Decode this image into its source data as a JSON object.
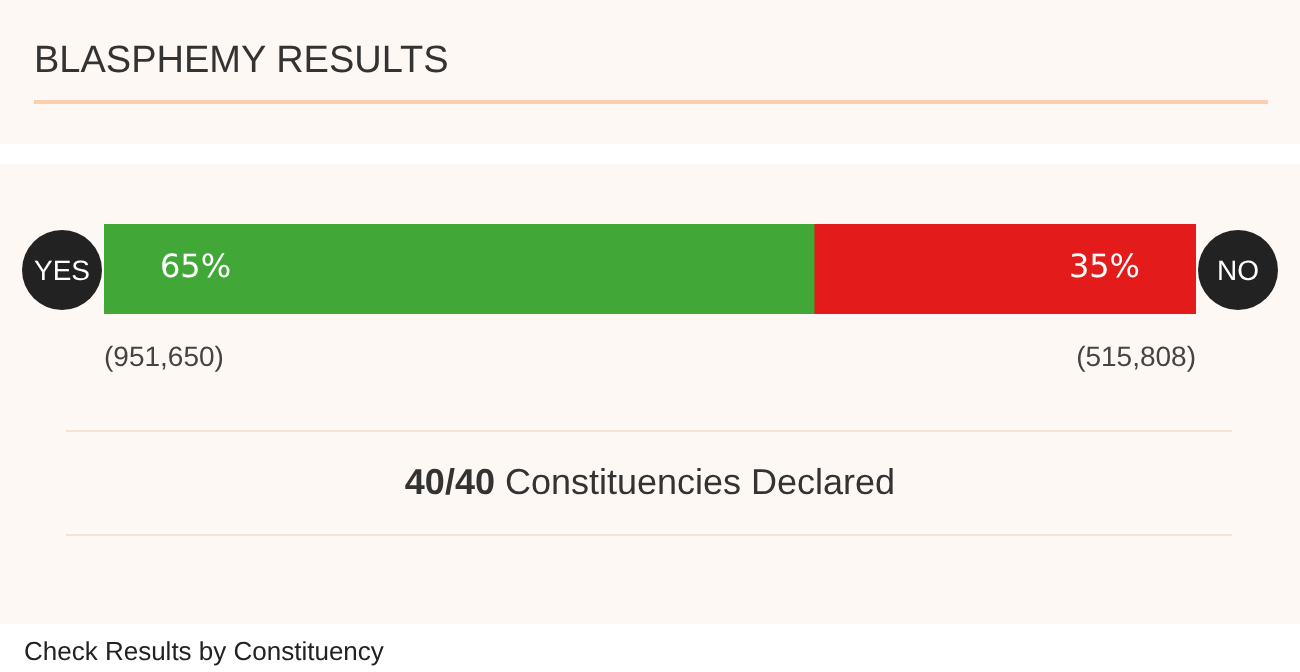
{
  "chart_data": {
    "type": "bar",
    "title": "BLASPHEMY RESULTS",
    "orientation": "horizontal",
    "stacked": true,
    "categories": [
      null
    ],
    "xlim": [
      0,
      100
    ],
    "tick_labels": false,
    "grid": false,
    "legend": false,
    "series": [
      {
        "name": "YES",
        "color": "#41a737",
        "values": [
          65
        ],
        "value_labels": [
          "65%"
        ]
      },
      {
        "name": "NO",
        "color": "#e31b1b",
        "values": [
          35
        ],
        "value_labels": [
          "35%"
        ]
      }
    ],
    "annotations": [
      "(951,650)",
      "(515,808)",
      "40/40 Constituencies Declared",
      "Check Results by Constituency"
    ]
  }
}
